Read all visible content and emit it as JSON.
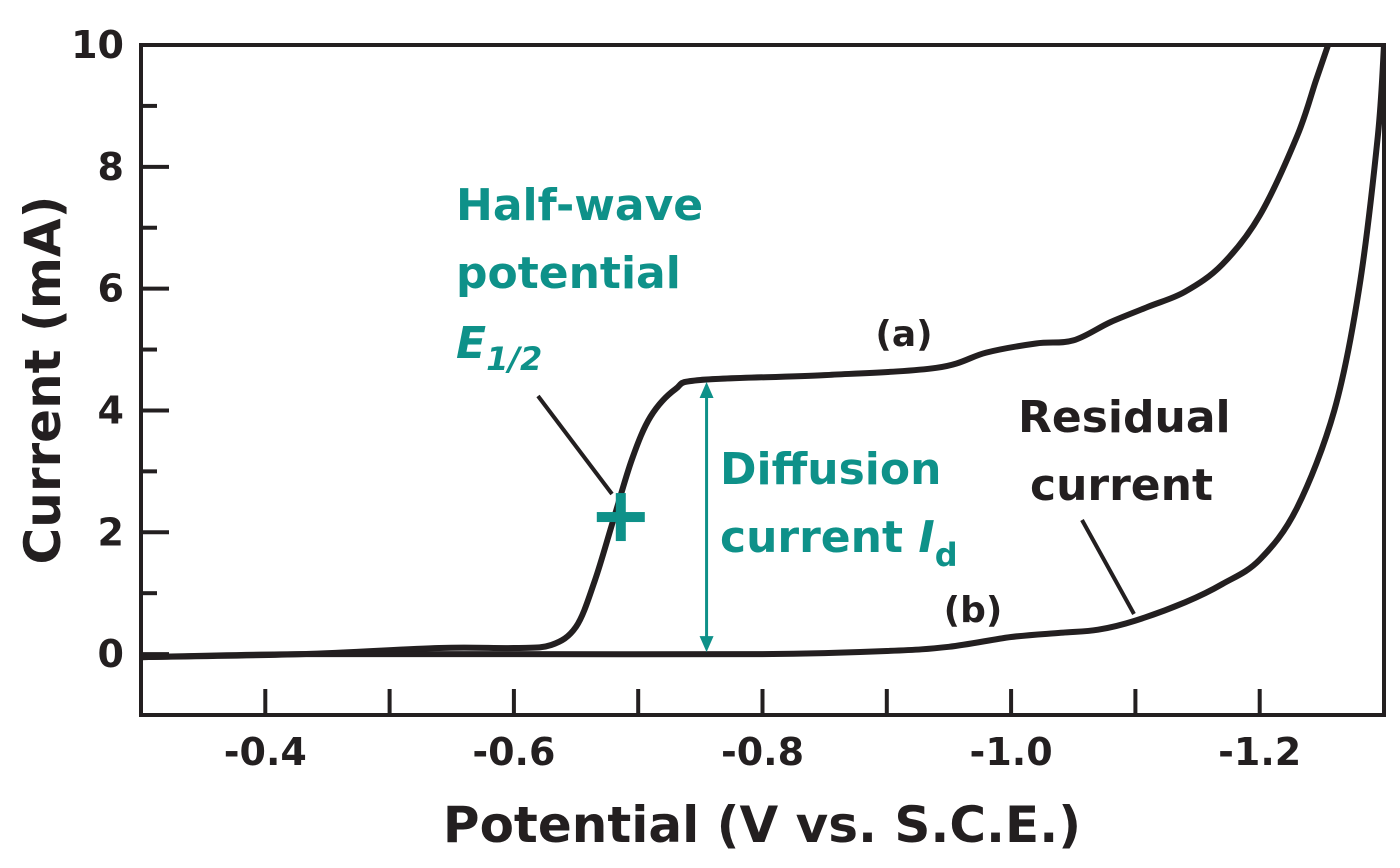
{
  "chart_data": {
    "type": "line",
    "xlabel": "Potential (V vs. S.C.E.)",
    "ylabel": "Current (mA)",
    "xlim": [
      -0.3,
      -1.3
    ],
    "ylim": [
      -1,
      10
    ],
    "x_axis_reversed": true,
    "xticks": [
      {
        "value": -0.4,
        "label": "-0.4"
      },
      {
        "value": -0.6,
        "label": "-0.6"
      },
      {
        "value": -0.8,
        "label": "-0.8"
      },
      {
        "value": -1.0,
        "label": "-1.0"
      },
      {
        "value": -1.2,
        "label": "-1.2"
      }
    ],
    "yticks": [
      {
        "value": 0,
        "label": "0"
      },
      {
        "value": 2,
        "label": "2"
      },
      {
        "value": 4,
        "label": "4"
      },
      {
        "value": 6,
        "label": "6"
      },
      {
        "value": 8,
        "label": "8"
      },
      {
        "value": 10,
        "label": "10"
      }
    ],
    "grid": false,
    "series": [
      {
        "name": "(a)",
        "color": "#231f20",
        "points": [
          [
            -0.3,
            -0.05
          ],
          [
            -0.43,
            0.0
          ],
          [
            -0.54,
            0.1
          ],
          [
            -0.6,
            0.1
          ],
          [
            -0.63,
            0.15
          ],
          [
            -0.65,
            0.45
          ],
          [
            -0.665,
            1.2
          ],
          [
            -0.68,
            2.2
          ],
          [
            -0.695,
            3.2
          ],
          [
            -0.71,
            3.9
          ],
          [
            -0.73,
            4.35
          ],
          [
            -0.75,
            4.5
          ],
          [
            -0.85,
            4.58
          ],
          [
            -0.94,
            4.7
          ],
          [
            -0.98,
            4.95
          ],
          [
            -1.02,
            5.1
          ],
          [
            -1.05,
            5.15
          ],
          [
            -1.08,
            5.45
          ],
          [
            -1.11,
            5.7
          ],
          [
            -1.14,
            5.95
          ],
          [
            -1.17,
            6.4
          ],
          [
            -1.2,
            7.2
          ],
          [
            -1.23,
            8.5
          ],
          [
            -1.245,
            9.4
          ],
          [
            -1.255,
            10.0
          ]
        ]
      },
      {
        "name": "(b)",
        "color": "#231f20",
        "points": [
          [
            -0.3,
            -0.05
          ],
          [
            -0.43,
            0.0
          ],
          [
            -0.6,
            0.0
          ],
          [
            -0.8,
            0.0
          ],
          [
            -0.9,
            0.05
          ],
          [
            -0.95,
            0.12
          ],
          [
            -1.0,
            0.28
          ],
          [
            -1.04,
            0.35
          ],
          [
            -1.07,
            0.4
          ],
          [
            -1.1,
            0.55
          ],
          [
            -1.14,
            0.85
          ],
          [
            -1.17,
            1.15
          ],
          [
            -1.2,
            1.55
          ],
          [
            -1.23,
            2.4
          ],
          [
            -1.26,
            4.0
          ],
          [
            -1.28,
            6.0
          ],
          [
            -1.295,
            8.5
          ],
          [
            -1.3,
            10.0
          ]
        ]
      }
    ],
    "annotations": {
      "half_wave": {
        "lines": [
          "Half-wave",
          "potential"
        ],
        "symbol": "E",
        "subscript": "1/2",
        "x": -0.686,
        "y": 2.25,
        "color": "#0e9189"
      },
      "diffusion": {
        "lines": [
          "Diffusion"
        ],
        "line2_prefix": "current ",
        "symbol": "I",
        "subscript": "d",
        "x": -0.755,
        "y_from": 0,
        "y_to": 4.5,
        "color": "#0e9189"
      },
      "residual": {
        "lines": [
          "Residual",
          "current"
        ],
        "color": "#231f20"
      },
      "label_a": "(a)",
      "label_b": "(b)"
    }
  }
}
